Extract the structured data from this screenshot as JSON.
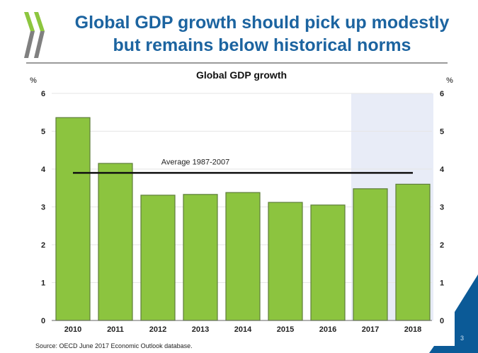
{
  "slide": {
    "title_line1": "Global GDP growth should pick up modestly",
    "title_line2": "but remains below historical norms",
    "source": "Source: OECD June 2017 Economic Outlook database.",
    "page_number": "3",
    "colors": {
      "title": "#1c64a0",
      "corner": "#0b5a97",
      "logo_green": "#8dc63f",
      "logo_gray": "#808080"
    }
  },
  "chart_data": {
    "type": "bar",
    "title": "Global GDP growth",
    "xlabel": "",
    "ylabel": "%",
    "ylabel_right": "%",
    "ylim": [
      0,
      6
    ],
    "yticks": [
      0,
      1,
      2,
      3,
      4,
      5,
      6
    ],
    "grid": true,
    "categories": [
      "2010",
      "2011",
      "2012",
      "2013",
      "2014",
      "2015",
      "2016",
      "2017",
      "2018"
    ],
    "values": [
      5.36,
      4.15,
      3.31,
      3.33,
      3.38,
      3.12,
      3.05,
      3.48,
      3.6
    ],
    "projection_shaded_categories": [
      "2017",
      "2018"
    ],
    "reference_line": {
      "label": "Average 1987-2007",
      "value": 3.9,
      "from": "2010",
      "to": "2018"
    },
    "bar_color": "#8cc43f",
    "bar_border": "#5d7d3a",
    "shade_color": "#e8ecf7"
  }
}
